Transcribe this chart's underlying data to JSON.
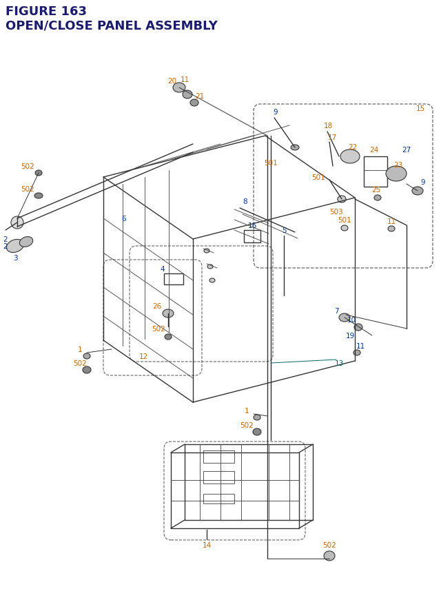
{
  "title_line1": "FIGURE 163",
  "title_line2": "OPEN/CLOSE PANEL ASSEMBLY",
  "title_color": "#1a1a6e",
  "title_fontsize": 13,
  "bg_color": "#ffffff",
  "label_color_orange": "#cc6600",
  "label_color_blue": "#003399",
  "label_color_black": "#222222",
  "label_color_teal": "#006666"
}
